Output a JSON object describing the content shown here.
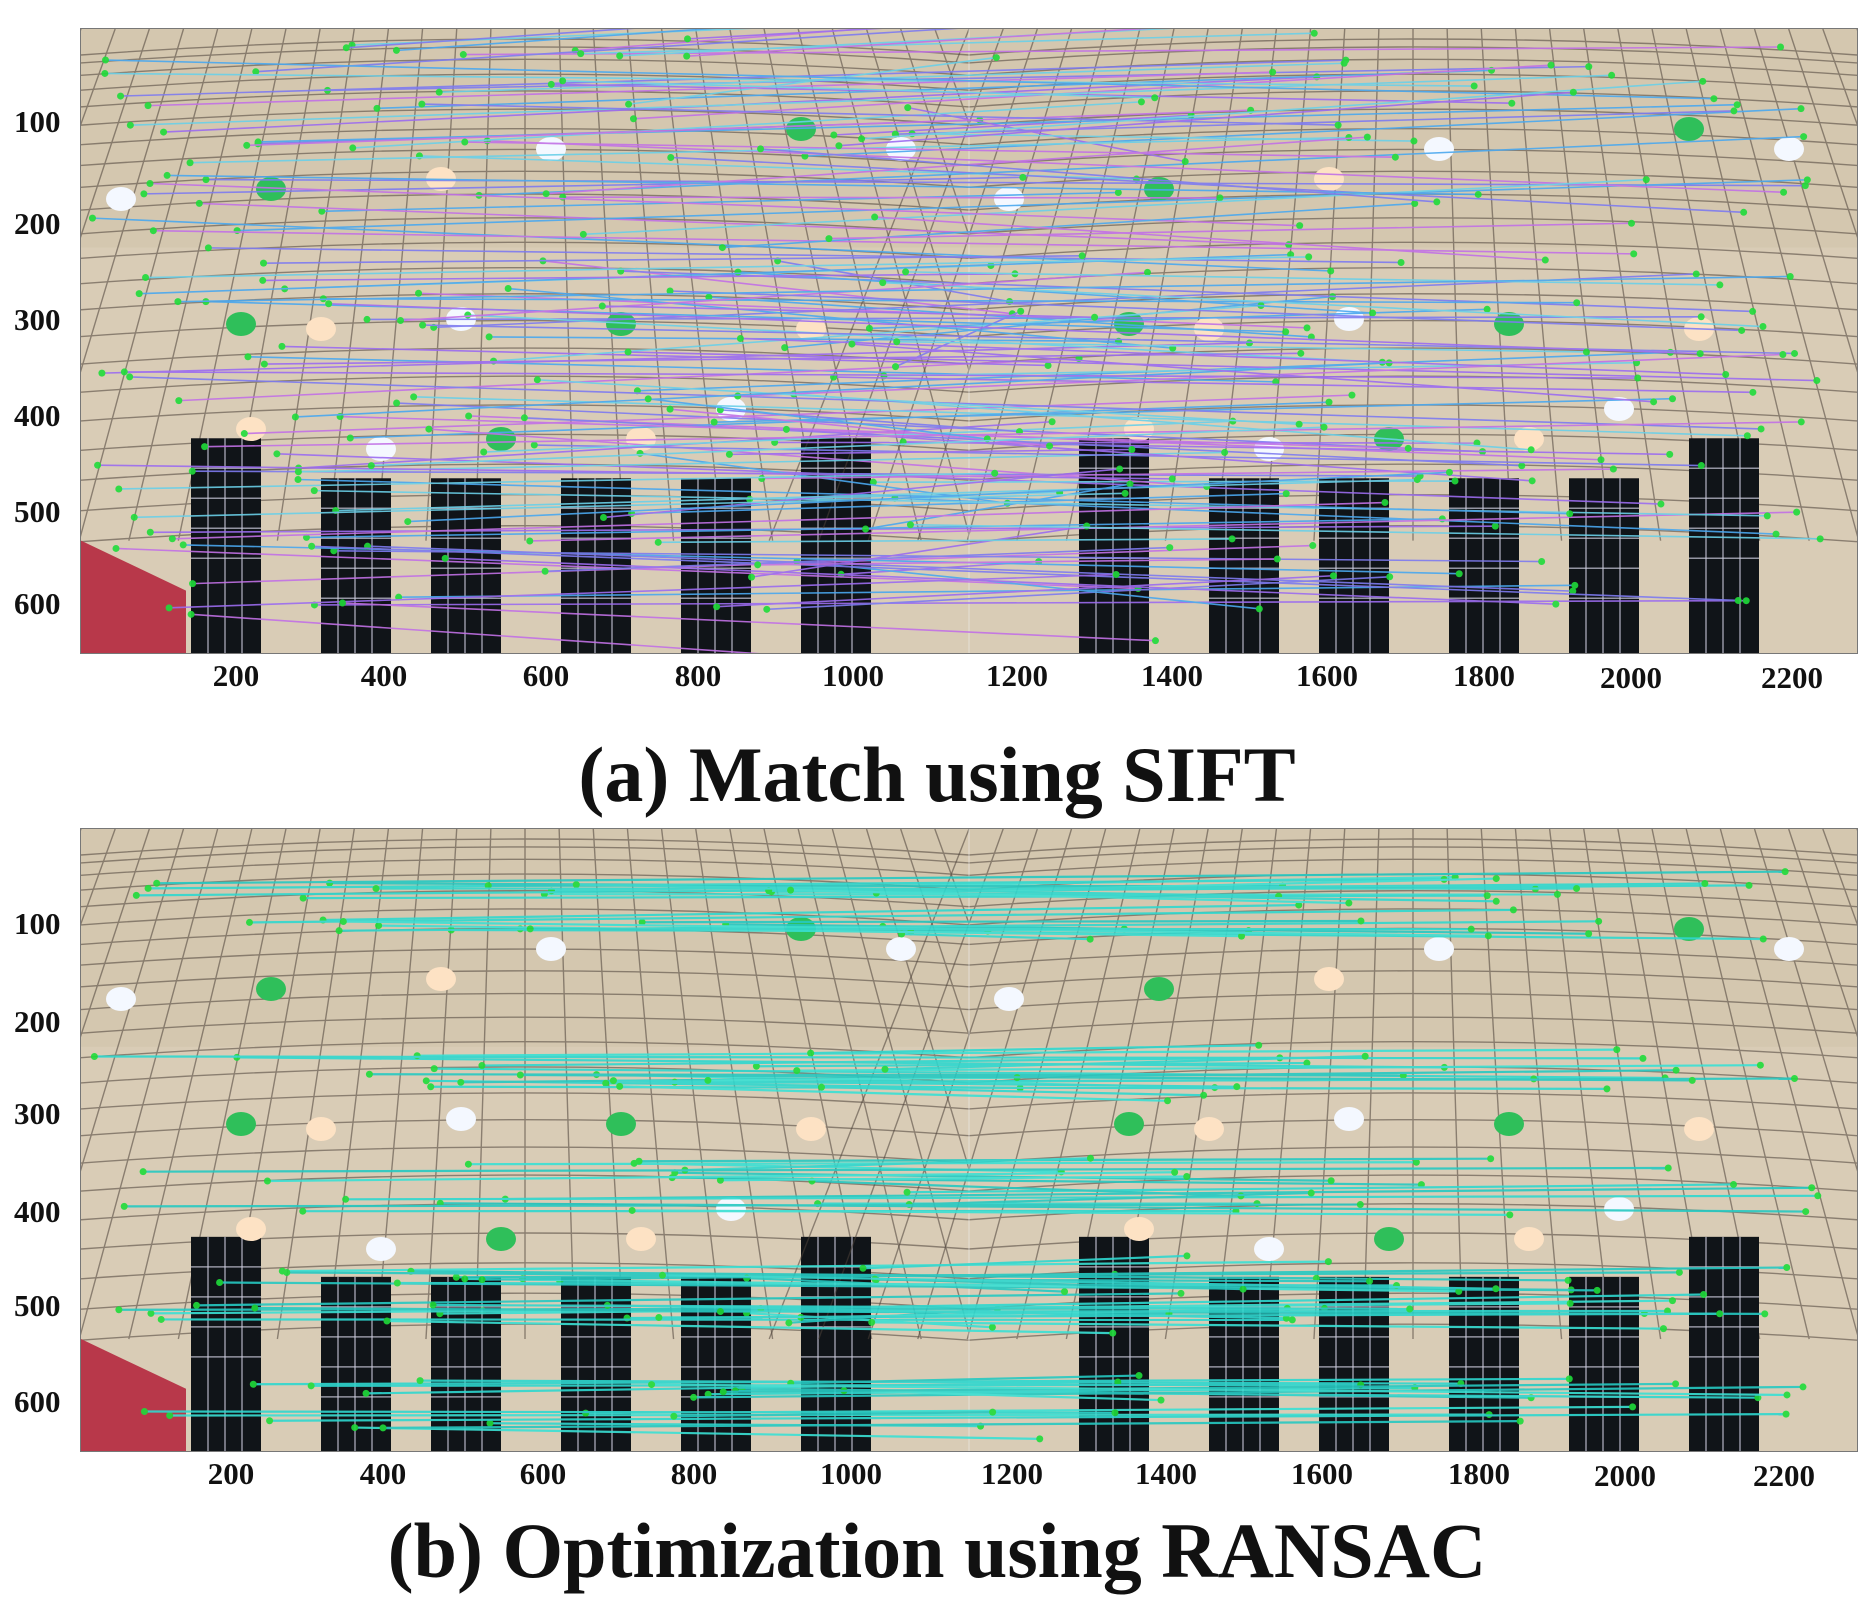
{
  "figure": {
    "panels": [
      {
        "id": "a",
        "caption": "(a) Match using SIFT",
        "x_ticks": [
          "200",
          "400",
          "600",
          "800",
          "1000",
          "1200",
          "1400",
          "1600",
          "1800",
          "2000",
          "2200"
        ],
        "y_ticks": [
          "100",
          "200",
          "300",
          "400",
          "500",
          "600"
        ],
        "line_colors": [
          "#6ad0e8",
          "#7e7bf0",
          "#c271e6",
          "#4aa8ef",
          "#9c6cf0"
        ]
      },
      {
        "id": "b",
        "caption": "(b) Optimization using RANSAC",
        "x_ticks": [
          "200",
          "400",
          "600",
          "800",
          "1000",
          "1200",
          "1400",
          "1600",
          "1800",
          "2000",
          "2200"
        ],
        "y_ticks": [
          "100",
          "200",
          "300",
          "400",
          "500",
          "600"
        ],
        "line_colors": [
          "#2fd8cf",
          "#3ae0d4",
          "#26c9c2"
        ]
      }
    ],
    "colors": {
      "ceiling": "#d9ccb6",
      "grid_line": "#4b4038",
      "lamp_green": "#22d64a",
      "keypoint": "#1fdc3a",
      "window": "#101418",
      "curtain": "#b8384a"
    }
  }
}
